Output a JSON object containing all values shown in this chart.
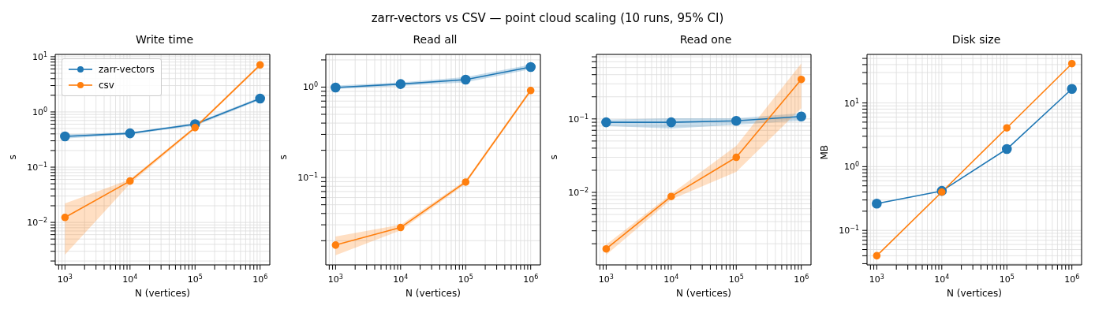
{
  "chart_data": [
    {
      "type": "line",
      "title": "Write time",
      "xlabel": "N (vertices)",
      "ylabel": "s",
      "annotations": [
        "zarr-vectors vs CSV — point cloud scaling (10 runs, 95% CI)"
      ],
      "log": "xy",
      "grid": true,
      "marker": "circle",
      "legend": "top left",
      "x": [
        1000,
        10000,
        100000,
        1000000
      ],
      "xlim": [
        708,
        1410000
      ],
      "xticks": [
        {
          "value": 800,
          "label": null
        },
        {
          "value": 900,
          "label": null
        },
        {
          "value": 1000,
          "label": "10$^{3}$"
        },
        {
          "value": 2000,
          "label": null
        },
        {
          "value": 3000,
          "label": null
        },
        {
          "value": 4000,
          "label": null
        },
        {
          "value": 5000,
          "label": null
        },
        {
          "value": 6000,
          "label": null
        },
        {
          "value": 7000,
          "label": null
        },
        {
          "value": 8000,
          "label": null
        },
        {
          "value": 9000,
          "label": null
        },
        {
          "value": 10000,
          "label": "10$^{4}$"
        },
        {
          "value": 20000,
          "label": null
        },
        {
          "value": 30000,
          "label": null
        },
        {
          "value": 40000,
          "label": null
        },
        {
          "value": 50000,
          "label": null
        },
        {
          "value": 60000,
          "label": null
        },
        {
          "value": 70000,
          "label": null
        },
        {
          "value": 80000,
          "label": null
        },
        {
          "value": 90000,
          "label": null
        },
        {
          "value": 100000,
          "label": "10$^{5}$"
        },
        {
          "value": 200000,
          "label": null
        },
        {
          "value": 300000,
          "label": null
        },
        {
          "value": 400000,
          "label": null
        },
        {
          "value": 500000,
          "label": null
        },
        {
          "value": 600000,
          "label": null
        },
        {
          "value": 700000,
          "label": null
        },
        {
          "value": 800000,
          "label": null
        },
        {
          "value": 900000,
          "label": null
        },
        {
          "value": 1000000,
          "label": "10$^{6}$"
        }
      ],
      "ylim": [
        0.0017,
        11
      ],
      "yticks": [
        {
          "value": 0.002,
          "label": null
        },
        {
          "value": 0.003,
          "label": null
        },
        {
          "value": 0.004,
          "label": null
        },
        {
          "value": 0.005,
          "label": null
        },
        {
          "value": 0.006,
          "label": null
        },
        {
          "value": 0.007,
          "label": null
        },
        {
          "value": 0.008,
          "label": null
        },
        {
          "value": 0.009,
          "label": null
        },
        {
          "value": 0.01,
          "label": "10$^{−2}$"
        },
        {
          "value": 0.02,
          "label": null
        },
        {
          "value": 0.03,
          "label": null
        },
        {
          "value": 0.04,
          "label": null
        },
        {
          "value": 0.05,
          "label": null
        },
        {
          "value": 0.06,
          "label": null
        },
        {
          "value": 0.07,
          "label": null
        },
        {
          "value": 0.08,
          "label": null
        },
        {
          "value": 0.09,
          "label": null
        },
        {
          "value": 0.1,
          "label": "10$^{−1}$"
        },
        {
          "value": 0.2,
          "label": null
        },
        {
          "value": 0.3,
          "label": null
        },
        {
          "value": 0.4,
          "label": null
        },
        {
          "value": 0.5,
          "label": null
        },
        {
          "value": 0.6,
          "label": null
        },
        {
          "value": 0.7,
          "label": null
        },
        {
          "value": 0.8,
          "label": null
        },
        {
          "value": 0.9,
          "label": null
        },
        {
          "value": 1,
          "label": "10$^{0}$"
        },
        {
          "value": 2,
          "label": null
        },
        {
          "value": 3,
          "label": null
        },
        {
          "value": 4,
          "label": null
        },
        {
          "value": 5,
          "label": null
        },
        {
          "value": 6,
          "label": null
        },
        {
          "value": 7,
          "label": null
        },
        {
          "value": 8,
          "label": null
        },
        {
          "value": 9,
          "label": null
        },
        {
          "value": 10,
          "label": "10$^{1}$"
        }
      ],
      "series": [
        {
          "name": "zarr-vectors",
          "color": "#1f77b4",
          "values": [
            0.36,
            0.41,
            0.6,
            1.75
          ],
          "lower": [
            0.33,
            0.39,
            0.56,
            1.65
          ],
          "upper": [
            0.39,
            0.43,
            0.63,
            1.85
          ]
        },
        {
          "name": "csv",
          "color": "#ff7f0e",
          "values": [
            0.0123,
            0.056,
            0.52,
            7.1
          ],
          "lower": [
            0.0026,
            0.05,
            0.49,
            6.7
          ],
          "upper": [
            0.022,
            0.06,
            0.55,
            7.5
          ]
        }
      ]
    },
    {
      "type": "line",
      "title": "Read all",
      "xlabel": "N (vertices)",
      "ylabel": "s",
      "log": "xy",
      "grid": true,
      "marker": "circle",
      "x": [
        1000,
        10000,
        100000,
        1000000
      ],
      "xlim": [
        708,
        1410000
      ],
      "xticks": [
        {
          "value": 800,
          "label": null
        },
        {
          "value": 900,
          "label": null
        },
        {
          "value": 1000,
          "label": "10$^{3}$"
        },
        {
          "value": 2000,
          "label": null
        },
        {
          "value": 3000,
          "label": null
        },
        {
          "value": 4000,
          "label": null
        },
        {
          "value": 5000,
          "label": null
        },
        {
          "value": 6000,
          "label": null
        },
        {
          "value": 7000,
          "label": null
        },
        {
          "value": 8000,
          "label": null
        },
        {
          "value": 9000,
          "label": null
        },
        {
          "value": 10000,
          "label": "10$^{4}$"
        },
        {
          "value": 20000,
          "label": null
        },
        {
          "value": 30000,
          "label": null
        },
        {
          "value": 40000,
          "label": null
        },
        {
          "value": 50000,
          "label": null
        },
        {
          "value": 60000,
          "label": null
        },
        {
          "value": 70000,
          "label": null
        },
        {
          "value": 80000,
          "label": null
        },
        {
          "value": 90000,
          "label": null
        },
        {
          "value": 100000,
          "label": "10$^{5}$"
        },
        {
          "value": 200000,
          "label": null
        },
        {
          "value": 300000,
          "label": null
        },
        {
          "value": 400000,
          "label": null
        },
        {
          "value": 500000,
          "label": null
        },
        {
          "value": 600000,
          "label": null
        },
        {
          "value": 700000,
          "label": null
        },
        {
          "value": 800000,
          "label": null
        },
        {
          "value": 900000,
          "label": null
        },
        {
          "value": 1000000,
          "label": "10$^{6}$"
        }
      ],
      "ylim": [
        0.0108,
        2.3
      ],
      "yticks": [
        {
          "value": 0.02,
          "label": null
        },
        {
          "value": 0.03,
          "label": null
        },
        {
          "value": 0.04,
          "label": null
        },
        {
          "value": 0.05,
          "label": null
        },
        {
          "value": 0.06,
          "label": null
        },
        {
          "value": 0.07,
          "label": null
        },
        {
          "value": 0.08,
          "label": null
        },
        {
          "value": 0.09,
          "label": null
        },
        {
          "value": 0.1,
          "label": "10$^{−1}$"
        },
        {
          "value": 0.2,
          "label": null
        },
        {
          "value": 0.3,
          "label": null
        },
        {
          "value": 0.4,
          "label": null
        },
        {
          "value": 0.5,
          "label": null
        },
        {
          "value": 0.6,
          "label": null
        },
        {
          "value": 0.7,
          "label": null
        },
        {
          "value": 0.8,
          "label": null
        },
        {
          "value": 0.9,
          "label": null
        },
        {
          "value": 1,
          "label": "10$^{0}$"
        },
        {
          "value": 2,
          "label": null
        }
      ],
      "series": [
        {
          "color": "#1f77b4",
          "values": [
            0.99,
            1.08,
            1.21,
            1.67
          ],
          "lower": [
            0.95,
            1.03,
            1.13,
            1.58
          ],
          "upper": [
            1.04,
            1.13,
            1.29,
            1.77
          ]
        },
        {
          "color": "#ff7f0e",
          "values": [
            0.0179,
            0.028,
            0.089,
            0.917
          ],
          "lower": [
            0.0138,
            0.026,
            0.085,
            0.88
          ],
          "upper": [
            0.0223,
            0.03,
            0.093,
            0.96
          ]
        }
      ]
    },
    {
      "type": "line",
      "title": "Read one",
      "xlabel": "N (vertices)",
      "ylabel": "s",
      "log": "xy",
      "grid": true,
      "marker": "circle",
      "x": [
        1000,
        10000,
        100000,
        1000000
      ],
      "xlim": [
        708,
        1410000
      ],
      "xticks": [
        {
          "value": 800,
          "label": null
        },
        {
          "value": 900,
          "label": null
        },
        {
          "value": 1000,
          "label": "10$^{3}$"
        },
        {
          "value": 2000,
          "label": null
        },
        {
          "value": 3000,
          "label": null
        },
        {
          "value": 4000,
          "label": null
        },
        {
          "value": 5000,
          "label": null
        },
        {
          "value": 6000,
          "label": null
        },
        {
          "value": 7000,
          "label": null
        },
        {
          "value": 8000,
          "label": null
        },
        {
          "value": 9000,
          "label": null
        },
        {
          "value": 10000,
          "label": "10$^{4}$"
        },
        {
          "value": 20000,
          "label": null
        },
        {
          "value": 30000,
          "label": null
        },
        {
          "value": 40000,
          "label": null
        },
        {
          "value": 50000,
          "label": null
        },
        {
          "value": 60000,
          "label": null
        },
        {
          "value": 70000,
          "label": null
        },
        {
          "value": 80000,
          "label": null
        },
        {
          "value": 90000,
          "label": null
        },
        {
          "value": 100000,
          "label": "10$^{5}$"
        },
        {
          "value": 200000,
          "label": null
        },
        {
          "value": 300000,
          "label": null
        },
        {
          "value": 400000,
          "label": null
        },
        {
          "value": 500000,
          "label": null
        },
        {
          "value": 600000,
          "label": null
        },
        {
          "value": 700000,
          "label": null
        },
        {
          "value": 800000,
          "label": null
        },
        {
          "value": 900000,
          "label": null
        },
        {
          "value": 1000000,
          "label": "10$^{6}$"
        }
      ],
      "ylim": [
        0.00103,
        0.755
      ],
      "yticks": [
        {
          "value": 0.002,
          "label": null
        },
        {
          "value": 0.003,
          "label": null
        },
        {
          "value": 0.004,
          "label": null
        },
        {
          "value": 0.005,
          "label": null
        },
        {
          "value": 0.006,
          "label": null
        },
        {
          "value": 0.007,
          "label": null
        },
        {
          "value": 0.008,
          "label": null
        },
        {
          "value": 0.009,
          "label": null
        },
        {
          "value": 0.01,
          "label": "10$^{−2}$"
        },
        {
          "value": 0.02,
          "label": null
        },
        {
          "value": 0.03,
          "label": null
        },
        {
          "value": 0.04,
          "label": null
        },
        {
          "value": 0.05,
          "label": null
        },
        {
          "value": 0.06,
          "label": null
        },
        {
          "value": 0.07,
          "label": null
        },
        {
          "value": 0.08,
          "label": null
        },
        {
          "value": 0.09,
          "label": null
        },
        {
          "value": 0.1,
          "label": "10$^{−1}$"
        },
        {
          "value": 0.2,
          "label": null
        },
        {
          "value": 0.3,
          "label": null
        },
        {
          "value": 0.4,
          "label": null
        },
        {
          "value": 0.5,
          "label": null
        },
        {
          "value": 0.6,
          "label": null
        },
        {
          "value": 0.7,
          "label": null
        }
      ],
      "series": [
        {
          "color": "#1f77b4",
          "values": [
            0.09,
            0.09,
            0.094,
            0.108
          ],
          "lower": [
            0.08,
            0.074,
            0.083,
            0.095
          ],
          "upper": [
            0.098,
            0.102,
            0.102,
            0.12
          ]
        },
        {
          "color": "#ff7f0e",
          "values": [
            0.0017,
            0.0088,
            0.03,
            0.345
          ],
          "lower": [
            0.00141,
            0.008,
            0.019,
            0.14
          ],
          "upper": [
            0.00195,
            0.0095,
            0.043,
            0.57
          ]
        }
      ]
    },
    {
      "type": "line",
      "title": "Disk size",
      "xlabel": "N (vertices)",
      "ylabel": "MB",
      "log": "xy",
      "grid": true,
      "marker": "circle",
      "x": [
        1000,
        10000,
        100000,
        1000000
      ],
      "xlim": [
        708,
        1410000
      ],
      "xticks": [
        {
          "value": 800,
          "label": null
        },
        {
          "value": 900,
          "label": null
        },
        {
          "value": 1000,
          "label": "10$^{3}$"
        },
        {
          "value": 2000,
          "label": null
        },
        {
          "value": 3000,
          "label": null
        },
        {
          "value": 4000,
          "label": null
        },
        {
          "value": 5000,
          "label": null
        },
        {
          "value": 6000,
          "label": null
        },
        {
          "value": 7000,
          "label": null
        },
        {
          "value": 8000,
          "label": null
        },
        {
          "value": 9000,
          "label": null
        },
        {
          "value": 10000,
          "label": "10$^{4}$"
        },
        {
          "value": 20000,
          "label": null
        },
        {
          "value": 30000,
          "label": null
        },
        {
          "value": 40000,
          "label": null
        },
        {
          "value": 50000,
          "label": null
        },
        {
          "value": 60000,
          "label": null
        },
        {
          "value": 70000,
          "label": null
        },
        {
          "value": 80000,
          "label": null
        },
        {
          "value": 90000,
          "label": null
        },
        {
          "value": 100000,
          "label": "10$^{5}$"
        },
        {
          "value": 200000,
          "label": null
        },
        {
          "value": 300000,
          "label": null
        },
        {
          "value": 400000,
          "label": null
        },
        {
          "value": 500000,
          "label": null
        },
        {
          "value": 600000,
          "label": null
        },
        {
          "value": 700000,
          "label": null
        },
        {
          "value": 800000,
          "label": null
        },
        {
          "value": 900000,
          "label": null
        },
        {
          "value": 1000000,
          "label": "10$^{6}$"
        }
      ],
      "ylim": [
        0.0287,
        57.8
      ],
      "yticks": [
        {
          "value": 0.03,
          "label": null
        },
        {
          "value": 0.04,
          "label": null
        },
        {
          "value": 0.05,
          "label": null
        },
        {
          "value": 0.06,
          "label": null
        },
        {
          "value": 0.07,
          "label": null
        },
        {
          "value": 0.08,
          "label": null
        },
        {
          "value": 0.09,
          "label": null
        },
        {
          "value": 0.1,
          "label": "10$^{−1}$"
        },
        {
          "value": 0.2,
          "label": null
        },
        {
          "value": 0.3,
          "label": null
        },
        {
          "value": 0.4,
          "label": null
        },
        {
          "value": 0.5,
          "label": null
        },
        {
          "value": 0.6,
          "label": null
        },
        {
          "value": 0.7,
          "label": null
        },
        {
          "value": 0.8,
          "label": null
        },
        {
          "value": 0.9,
          "label": null
        },
        {
          "value": 1,
          "label": "10$^{0}$"
        },
        {
          "value": 2,
          "label": null
        },
        {
          "value": 3,
          "label": null
        },
        {
          "value": 4,
          "label": null
        },
        {
          "value": 5,
          "label": null
        },
        {
          "value": 6,
          "label": null
        },
        {
          "value": 7,
          "label": null
        },
        {
          "value": 8,
          "label": null
        },
        {
          "value": 9,
          "label": null
        },
        {
          "value": 10,
          "label": "10$^{1}$"
        },
        {
          "value": 20,
          "label": null
        },
        {
          "value": 30,
          "label": null
        },
        {
          "value": 40,
          "label": null
        },
        {
          "value": 50,
          "label": null
        }
      ],
      "series": [
        {
          "color": "#1f77b4",
          "values": [
            0.263,
            0.416,
            1.89,
            16.6
          ]
        },
        {
          "color": "#ff7f0e",
          "values": [
            0.04,
            0.4,
            4.06,
            41.4
          ]
        }
      ]
    }
  ]
}
